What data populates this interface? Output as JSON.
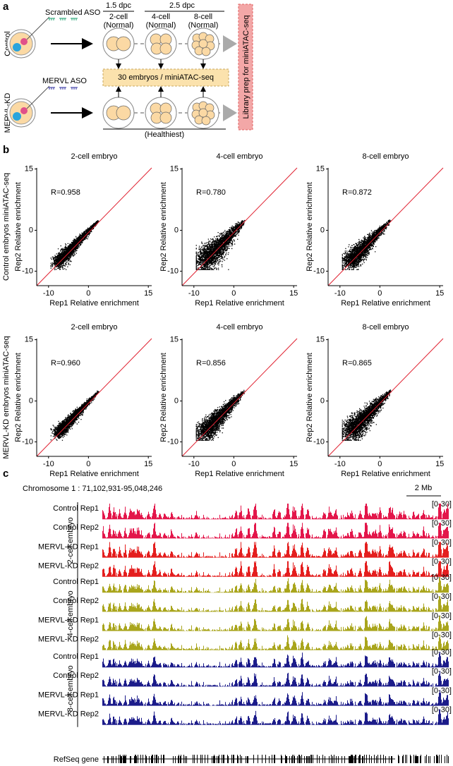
{
  "panel_a": {
    "label": "a",
    "dpc_1": "1.5 dpc",
    "dpc_2": "2.5 dpc",
    "scrambled_aso": "Scrambled ASO",
    "mervl_aso": "MERVL ASO",
    "stages": [
      [
        "2-cell",
        "(Normal)"
      ],
      [
        "4-cell",
        "(Normal)"
      ],
      [
        "8-cell",
        "(Normal)"
      ]
    ],
    "rows": [
      "Control",
      "MERVL-KD"
    ],
    "pool": "30 embryos / miniATAC-seq",
    "healthiest": "(Healthiest)",
    "library": "Library prep for miniATAC-seq"
  },
  "panel_b": {
    "label": "b",
    "y_label": "Rep2 Relative enrichment",
    "x_label": "Rep1 Relative enrichment",
    "ticks": [
      -10,
      0,
      15
    ],
    "rows": [
      {
        "label": "Control embryos miniATAC-seq",
        "plots": [
          {
            "title": "2-cell embryo",
            "r": "R=0.958"
          },
          {
            "title": "4-cell embryo",
            "r": "R=0.780"
          },
          {
            "title": "8-cell embryo",
            "r": "R=0.872"
          }
        ]
      },
      {
        "label": "MERVL-KD embryos miniATAC-seq",
        "plots": [
          {
            "title": "2-cell embryo",
            "r": "R=0.960"
          },
          {
            "title": "4-cell embryo",
            "r": "R=0.856"
          },
          {
            "title": "8-cell embryo",
            "r": "R=0.865"
          }
        ]
      }
    ]
  },
  "panel_c": {
    "label": "c",
    "locus": "Chromosome 1 : 71,102,931-95,048,246",
    "scale_bar": "2 Mb",
    "range": "[0-30]",
    "groups": [
      {
        "name": "2-cell embryo",
        "colors": [
          "#e3164a",
          "#e3164a",
          "#e41e1e",
          "#e41e1e"
        ],
        "tracks": [
          "Control Rep1",
          "Control Rep2",
          "MERVL-KD Rep1",
          "MERVL-KD Rep2"
        ]
      },
      {
        "name": "4-cell embryo",
        "colors": [
          "#a9a51c",
          "#a9a51c",
          "#a9a51c",
          "#a9a51c"
        ],
        "tracks": [
          "Control Rep1",
          "Control Rep2",
          "MERVL-KD Rep1",
          "MERVL-KD Rep2"
        ]
      },
      {
        "name": "8-cell embryo",
        "colors": [
          "#1c1c8a",
          "#1c1c8a",
          "#1c1c8a",
          "#1c1c8a"
        ],
        "tracks": [
          "Control Rep1",
          "Control Rep2",
          "MERVL-KD Rep1",
          "MERVL-KD Rep2"
        ]
      }
    ],
    "gene_track": "RefSeq gene"
  }
}
